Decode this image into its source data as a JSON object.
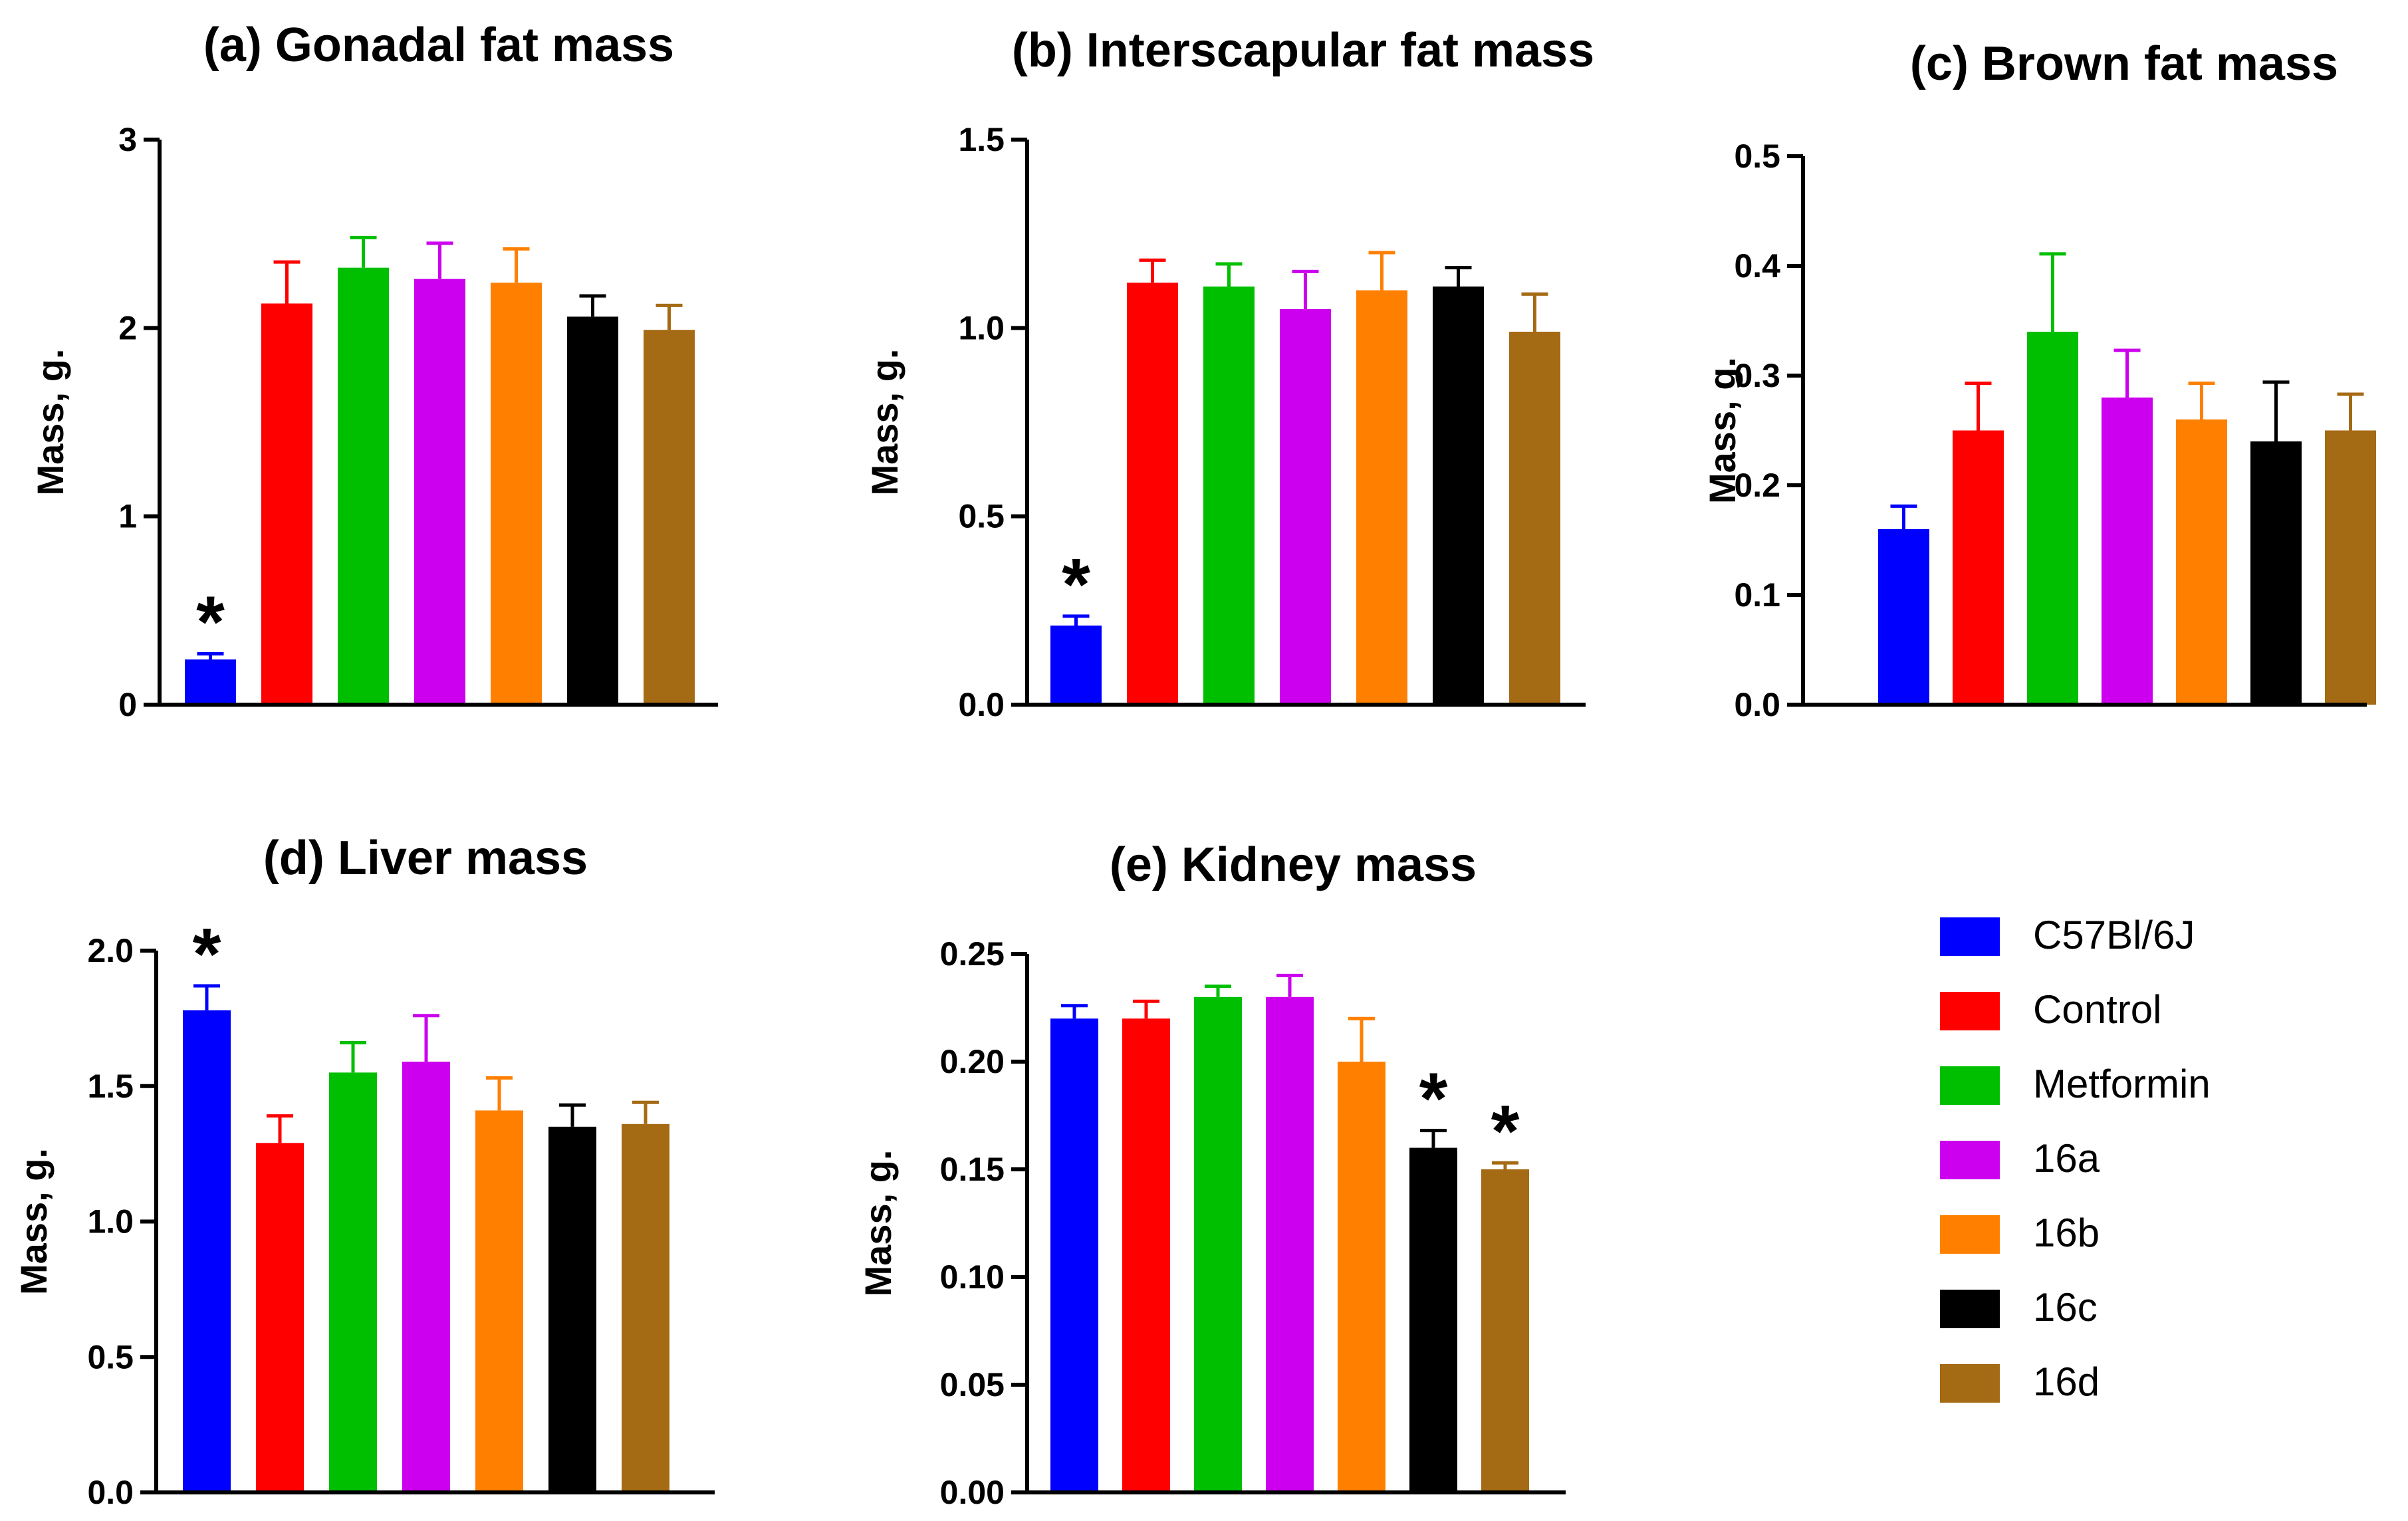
{
  "colors": {
    "C57Bl/6J": "#0000ff",
    "Control": "#ff0000",
    "Metformin": "#00bf00",
    "16a": "#cc00ee",
    "16b": "#ff8000",
    "16c": "#000000",
    "16d": "#a56a14"
  },
  "legend": [
    "C57Bl/6J",
    "Control",
    "Metformin",
    "16a",
    "16b",
    "16c",
    "16d"
  ],
  "chart_data": [
    {
      "id": "a",
      "type": "bar",
      "title": "(a) Gonadal fat mass",
      "xlabel": "",
      "ylabel": "Mass, g.",
      "ylim": [
        0,
        3
      ],
      "ticks": [
        0,
        1,
        2,
        3
      ],
      "tick_labels": [
        "0",
        "1",
        "2",
        "3"
      ],
      "categories": [
        "C57Bl/6J",
        "Control",
        "Metformin",
        "16a",
        "16b",
        "16c",
        "16d"
      ],
      "values": [
        0.24,
        2.13,
        2.32,
        2.26,
        2.24,
        2.06,
        1.99
      ],
      "errors": [
        0.03,
        0.22,
        0.16,
        0.19,
        0.18,
        0.11,
        0.13
      ],
      "significant": [
        true,
        false,
        false,
        false,
        false,
        false,
        false
      ],
      "sig_symbol": "*"
    },
    {
      "id": "b",
      "type": "bar",
      "title": "(b) Interscapular fat mass",
      "xlabel": "",
      "ylabel": "Mass, g.",
      "ylim": [
        0,
        1.5
      ],
      "ticks": [
        0,
        0.5,
        1.0,
        1.5
      ],
      "tick_labels": [
        "0.0",
        "0.5",
        "1.0",
        "1.5"
      ],
      "categories": [
        "C57Bl/6J",
        "Control",
        "Metformin",
        "16a",
        "16b",
        "16c",
        "16d"
      ],
      "values": [
        0.21,
        1.12,
        1.11,
        1.05,
        1.1,
        1.11,
        0.99
      ],
      "errors": [
        0.025,
        0.06,
        0.06,
        0.1,
        0.1,
        0.05,
        0.1
      ],
      "significant": [
        true,
        false,
        false,
        false,
        false,
        false,
        false
      ],
      "sig_symbol": "*"
    },
    {
      "id": "c",
      "type": "bar",
      "title": "(c) Brown fat mass",
      "xlabel": "",
      "ylabel": "Mass, g.",
      "ylim": [
        0,
        0.5
      ],
      "ticks": [
        0,
        0.1,
        0.2,
        0.3,
        0.4,
        0.5
      ],
      "tick_labels": [
        "0.0",
        "0.1",
        "0.2",
        "0.3",
        "0.4",
        "0.5"
      ],
      "categories": [
        "C57Bl/6J",
        "Control",
        "Metformin",
        "16a",
        "16b",
        "16c",
        "16d"
      ],
      "values": [
        0.16,
        0.25,
        0.34,
        0.28,
        0.26,
        0.24,
        0.25
      ],
      "errors": [
        0.021,
        0.043,
        0.071,
        0.043,
        0.033,
        0.054,
        0.033
      ],
      "significant": [
        false,
        false,
        false,
        false,
        false,
        false,
        false
      ],
      "sig_symbol": "*"
    },
    {
      "id": "d",
      "type": "bar",
      "title": "(d) Liver mass",
      "xlabel": "",
      "ylabel": "Mass, g.",
      "ylim": [
        0,
        2.0
      ],
      "ticks": [
        0,
        0.5,
        1.0,
        1.5,
        2.0
      ],
      "tick_labels": [
        "0.0",
        "0.5",
        "1.0",
        "1.5",
        "2.0"
      ],
      "categories": [
        "C57Bl/6J",
        "Control",
        "Metformin",
        "16a",
        "16b",
        "16c",
        "16d"
      ],
      "values": [
        1.78,
        1.29,
        1.55,
        1.59,
        1.41,
        1.35,
        1.36
      ],
      "errors": [
        0.09,
        0.1,
        0.11,
        0.17,
        0.12,
        0.08,
        0.08
      ],
      "significant": [
        true,
        false,
        false,
        false,
        false,
        false,
        false
      ],
      "sig_symbol": "*"
    },
    {
      "id": "e",
      "type": "bar",
      "title": "(e) Kidney mass",
      "xlabel": "",
      "ylabel": "Mass, g.",
      "ylim": [
        0,
        0.25
      ],
      "ticks": [
        0,
        0.05,
        0.1,
        0.15,
        0.2,
        0.25
      ],
      "tick_labels": [
        "0.00",
        "0.05",
        "0.10",
        "0.15",
        "0.20",
        "0.25"
      ],
      "categories": [
        "C57Bl/6J",
        "Control",
        "Metformin",
        "16a",
        "16b",
        "16c",
        "16d"
      ],
      "values": [
        0.22,
        0.22,
        0.23,
        0.23,
        0.2,
        0.16,
        0.15
      ],
      "errors": [
        0.006,
        0.008,
        0.005,
        0.01,
        0.02,
        0.008,
        0.003
      ],
      "significant": [
        false,
        false,
        false,
        false,
        false,
        true,
        true
      ],
      "sig_symbol": "*"
    }
  ]
}
